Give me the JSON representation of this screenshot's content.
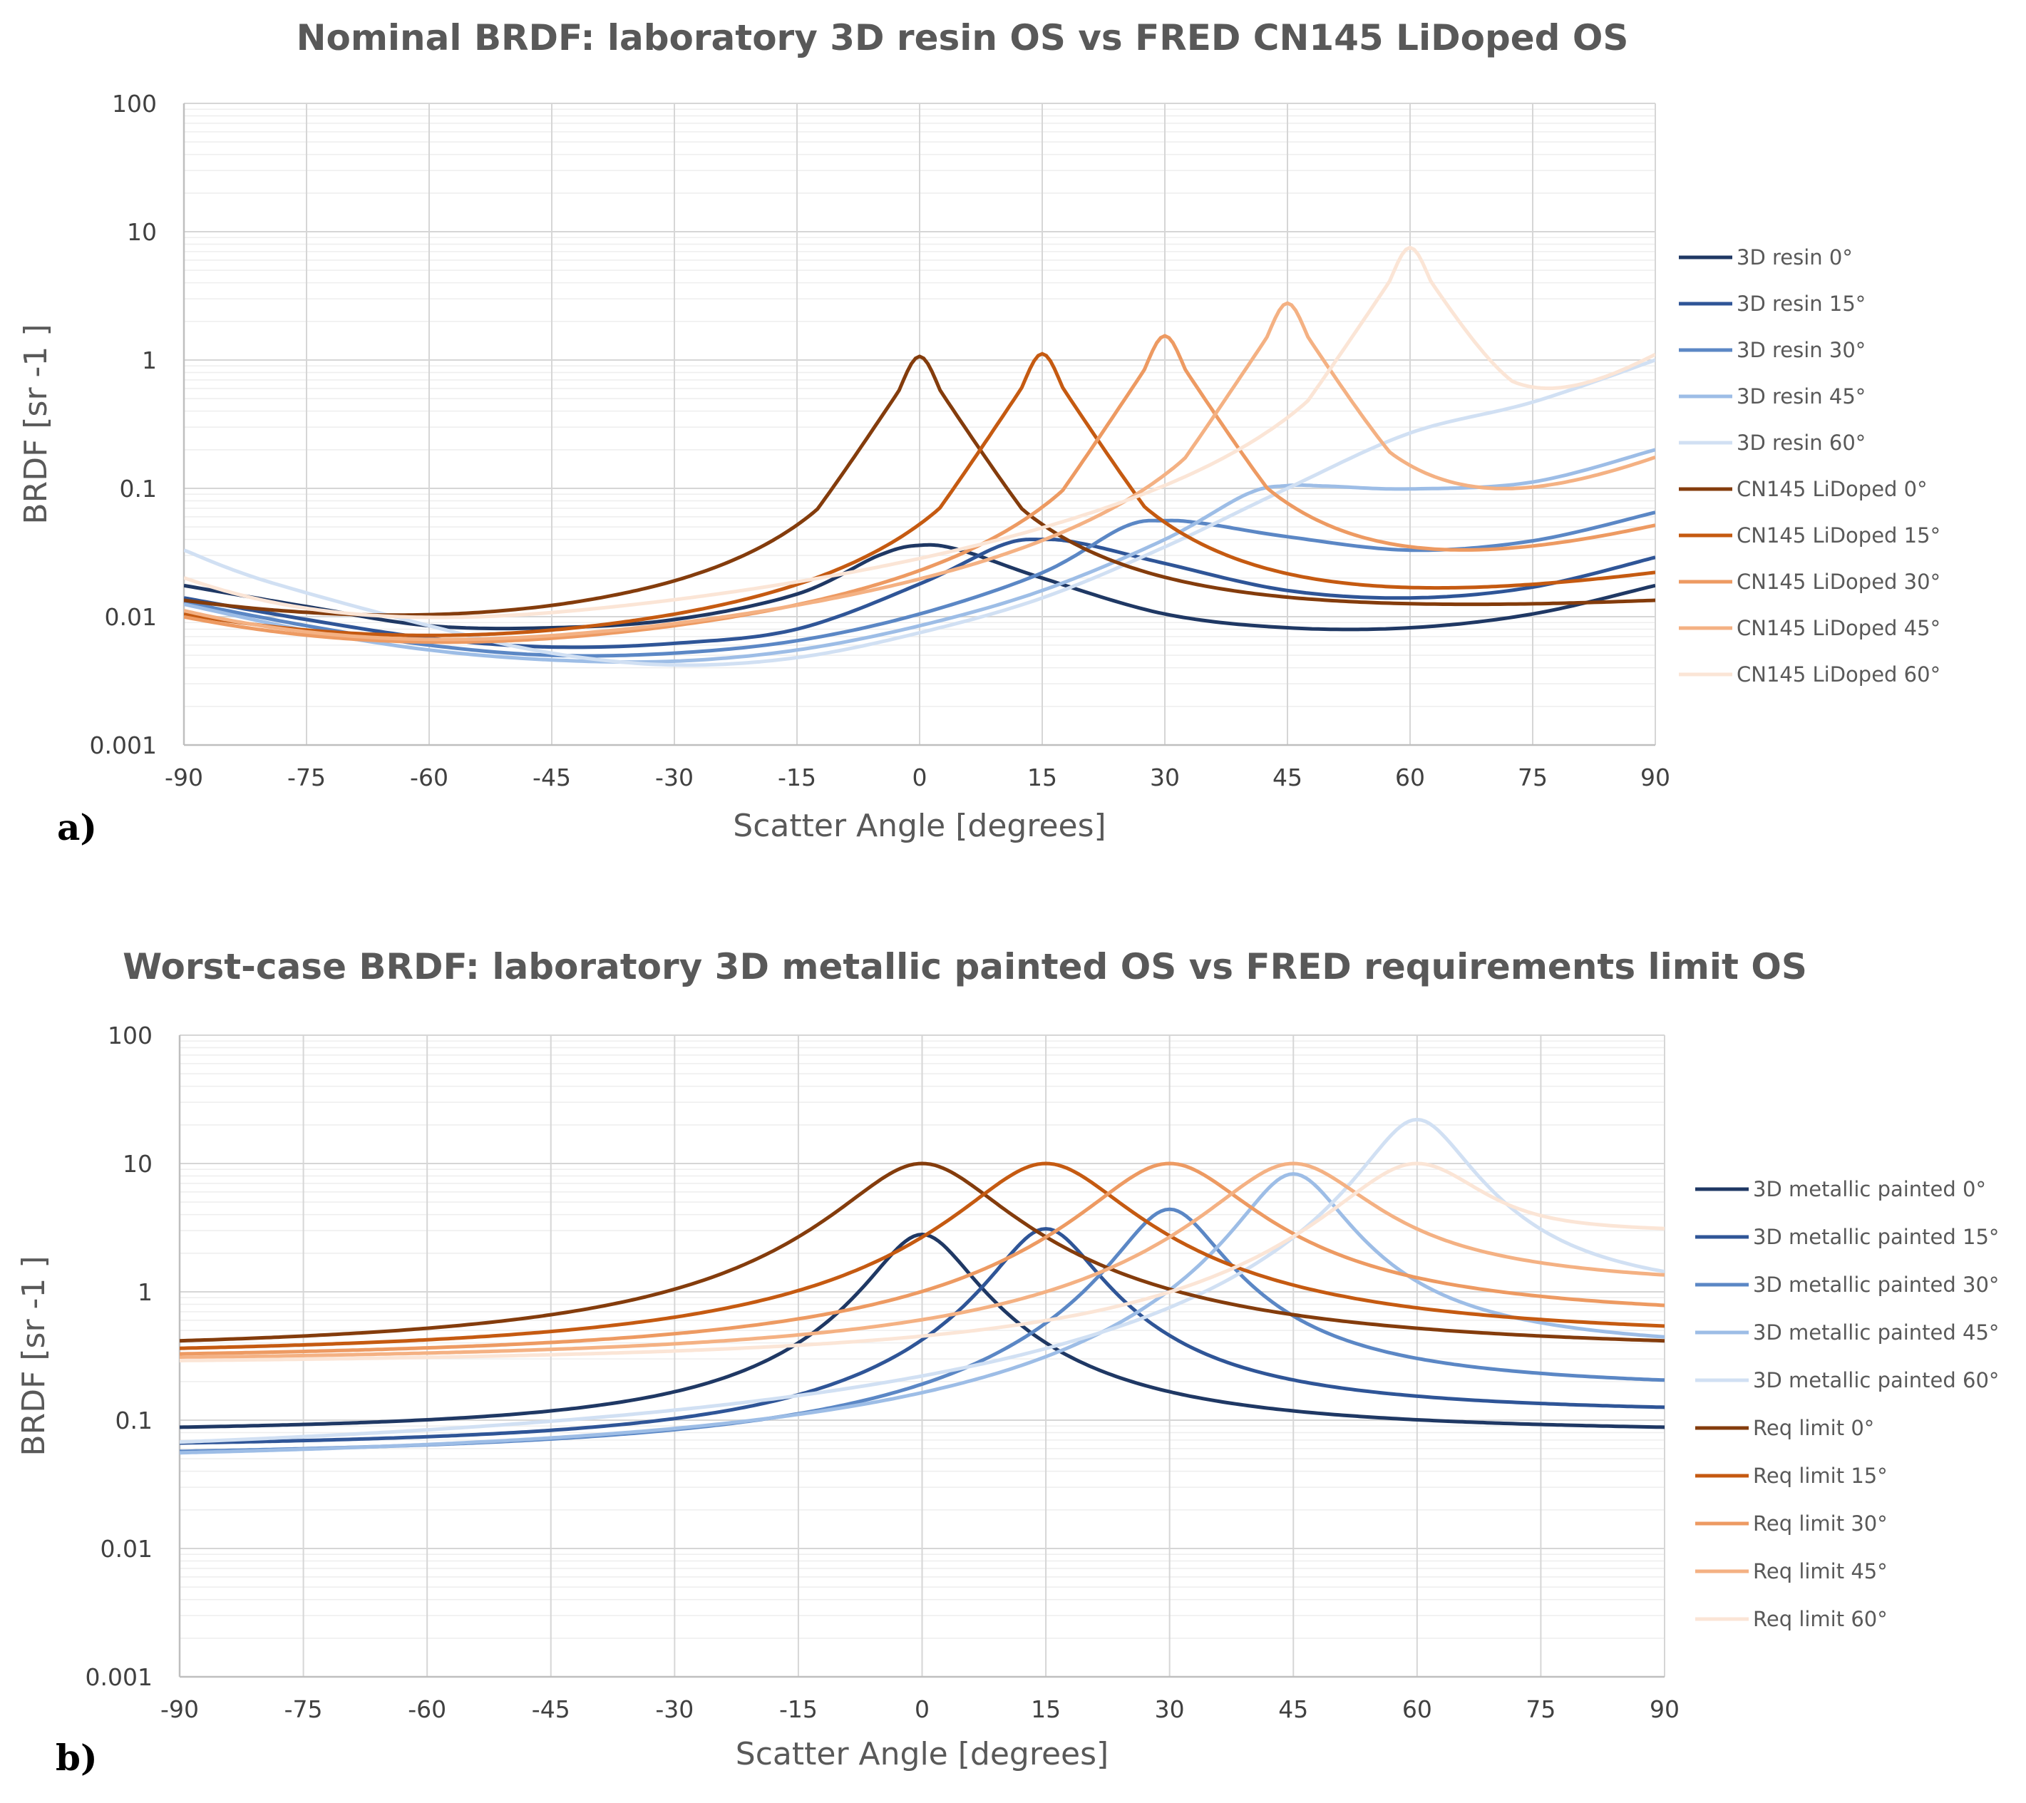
{
  "chart_data": [
    {
      "type": "line",
      "panel_label": "a)",
      "title": "Nominal BRDF: laboratory 3D resin OS vs FRED CN145 LiDoped OS",
      "xlabel": "Scatter Angle [degrees]",
      "ylabel": "BRDF [sr -1 ]",
      "xlim": [
        -90,
        90
      ],
      "ylim": [
        0.001,
        100
      ],
      "yscale": "log",
      "grid": true,
      "legend": "right",
      "x_ticks": [
        "-90",
        "-75",
        "-60",
        "-45",
        "-30",
        "-15",
        "0",
        "15",
        "30",
        "45",
        "60",
        "75",
        "90"
      ],
      "y_ticks": [
        "100",
        "10",
        "1",
        "0.1",
        "0.01",
        "0.001"
      ],
      "series": [
        {
          "name": "3D resin 0°",
          "color": "#1f3864",
          "points": [
            [
              -90,
              0.0175
            ],
            [
              -75,
              0.012
            ],
            [
              -60,
              0.0085
            ],
            [
              -45,
              0.0082
            ],
            [
              -30,
              0.0095
            ],
            [
              -15,
              0.015
            ],
            [
              -5,
              0.03
            ],
            [
              0,
              0.036
            ],
            [
              5,
              0.033
            ],
            [
              15,
              0.02
            ],
            [
              30,
              0.0105
            ],
            [
              45,
              0.0082
            ],
            [
              60,
              0.0082
            ],
            [
              75,
              0.0105
            ],
            [
              90,
              0.0175
            ]
          ]
        },
        {
          "name": "3D resin 15°",
          "color": "#2f5597",
          "points": [
            [
              -90,
              0.014
            ],
            [
              -75,
              0.0095
            ],
            [
              -60,
              0.0068
            ],
            [
              -45,
              0.0058
            ],
            [
              -30,
              0.0062
            ],
            [
              -15,
              0.008
            ],
            [
              0,
              0.018
            ],
            [
              10,
              0.036
            ],
            [
              15,
              0.04
            ],
            [
              20,
              0.037
            ],
            [
              30,
              0.026
            ],
            [
              45,
              0.016
            ],
            [
              60,
              0.014
            ],
            [
              75,
              0.017
            ],
            [
              90,
              0.029
            ]
          ]
        },
        {
          "name": "3D resin 30°",
          "color": "#5b87c5",
          "points": [
            [
              -90,
              0.013
            ],
            [
              -75,
              0.0085
            ],
            [
              -60,
              0.006
            ],
            [
              -45,
              0.005
            ],
            [
              -30,
              0.0052
            ],
            [
              -15,
              0.0065
            ],
            [
              0,
              0.0105
            ],
            [
              15,
              0.022
            ],
            [
              25,
              0.05
            ],
            [
              30,
              0.056
            ],
            [
              35,
              0.053
            ],
            [
              45,
              0.042
            ],
            [
              60,
              0.033
            ],
            [
              75,
              0.039
            ],
            [
              90,
              0.065
            ]
          ]
        },
        {
          "name": "3D resin 45°",
          "color": "#9dbde6",
          "points": [
            [
              -90,
              0.0125
            ],
            [
              -75,
              0.0078
            ],
            [
              -60,
              0.0055
            ],
            [
              -45,
              0.0046
            ],
            [
              -30,
              0.0045
            ],
            [
              -15,
              0.0055
            ],
            [
              0,
              0.0085
            ],
            [
              15,
              0.016
            ],
            [
              30,
              0.04
            ],
            [
              40,
              0.09
            ],
            [
              45,
              0.105
            ],
            [
              50,
              0.104
            ],
            [
              60,
              0.099
            ],
            [
              75,
              0.112
            ],
            [
              90,
              0.2
            ]
          ]
        },
        {
          "name": "3D resin 60°",
          "color": "#d1e0f3",
          "points": [
            [
              -90,
              0.033
            ],
            [
              -80,
              0.019
            ],
            [
              -60,
              0.0085
            ],
            [
              -45,
              0.0052
            ],
            [
              -30,
              0.0042
            ],
            [
              -15,
              0.0048
            ],
            [
              0,
              0.0075
            ],
            [
              15,
              0.014
            ],
            [
              30,
              0.035
            ],
            [
              45,
              0.1
            ],
            [
              60,
              0.27
            ],
            [
              75,
              0.47
            ],
            [
              90,
              1.0
            ]
          ]
        },
        {
          "name": "CN145 LiDoped 0°",
          "color": "#843c0c",
          "peak": 0,
          "peak_value": 1.0,
          "base": [
            0.012,
            0.0066
          ],
          "ends": [
            0.012,
            0.012
          ]
        },
        {
          "name": "CN145 LiDoped 15°",
          "color": "#c55a11",
          "peak": 15,
          "peak_value": 1.05,
          "base": [
            0.0094,
            0.0045
          ],
          "ends": [
            0.0094,
            0.02
          ]
        },
        {
          "name": "CN145 LiDoped 30°",
          "color": "#ed9a62",
          "peak": 30,
          "peak_value": 1.45,
          "base": [
            0.0088,
            0.0038
          ],
          "ends": [
            0.0088,
            0.047
          ]
        },
        {
          "name": "CN145 LiDoped 45°",
          "color": "#f4b183",
          "peak": 45,
          "peak_value": 2.6,
          "base": [
            0.0095,
            0.0034
          ],
          "ends": [
            0.0095,
            0.16
          ]
        },
        {
          "name": "CN145 LiDoped 60°",
          "color": "#fbe5d6",
          "peak": 60,
          "peak_value": 7.0,
          "base": [
            0.0165,
            0.0034
          ],
          "ends": [
            0.0165,
            1.02
          ]
        }
      ]
    },
    {
      "type": "line",
      "panel_label": "b)",
      "title": "Worst-case BRDF: laboratory 3D metallic painted OS vs FRED requirements limit OS",
      "xlabel": "Scatter Angle [degrees]",
      "ylabel": "BRDF [sr -1 ]",
      "xlim": [
        -90,
        90
      ],
      "ylim": [
        0.001,
        100
      ],
      "yscale": "log",
      "grid": true,
      "legend": "right",
      "x_ticks": [
        "-90",
        "-75",
        "-60",
        "-45",
        "-30",
        "-15",
        "0",
        "15",
        "30",
        "45",
        "60",
        "75",
        "90"
      ],
      "y_ticks": [
        "100",
        "10",
        "1",
        "0.1",
        "0.01",
        "0.001"
      ],
      "series": [
        {
          "name": "3D metallic painted 0°",
          "color": "#1f3864",
          "peak": 0,
          "peak_value": 2.8,
          "ends": [
            0.078,
            0.078
          ]
        },
        {
          "name": "3D metallic painted 15°",
          "color": "#2f5597",
          "peak": 15,
          "peak_value": 3.1,
          "ends": [
            0.058,
            0.11
          ]
        },
        {
          "name": "3D metallic painted 30°",
          "color": "#5b87c5",
          "peak": 30,
          "peak_value": 4.4,
          "ends": [
            0.048,
            0.17
          ]
        },
        {
          "name": "3D metallic painted 45°",
          "color": "#9dbde6",
          "peak": 45,
          "peak_value": 8.3,
          "ends": [
            0.042,
            0.33
          ]
        },
        {
          "name": "3D metallic painted 60°",
          "color": "#d1e0f3",
          "peak": 60,
          "peak_value": 22.0,
          "ends": [
            0.038,
            0.8
          ]
        },
        {
          "name": "Req limit 0°",
          "color": "#843c0c",
          "peak": 0,
          "peak_value": 10.0,
          "ends": [
            0.33,
            0.33
          ]
        },
        {
          "name": "Req limit 15°",
          "color": "#c55a11",
          "peak": 15,
          "peak_value": 10.0,
          "ends": [
            0.3,
            0.42
          ]
        },
        {
          "name": "Req limit 30°",
          "color": "#ed9a62",
          "peak": 30,
          "peak_value": 10.0,
          "ends": [
            0.28,
            0.6
          ]
        },
        {
          "name": "Req limit 45°",
          "color": "#f4b183",
          "peak": 45,
          "peak_value": 10.0,
          "ends": [
            0.27,
            1.05
          ]
        },
        {
          "name": "Req limit 60°",
          "color": "#fbe5d6",
          "peak": 60,
          "peak_value": 10.0,
          "ends": [
            0.26,
            2.7
          ]
        }
      ]
    }
  ]
}
